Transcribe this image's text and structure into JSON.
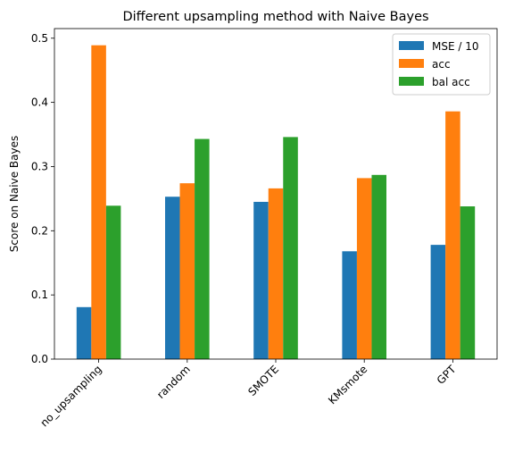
{
  "chart_data": {
    "type": "bar",
    "title": "Different upsampling method with Naive Bayes",
    "xlabel": "",
    "ylabel": "Score on Naive Bayes",
    "categories": [
      "no_upsampling",
      "random",
      "SMOTE",
      "KMsmote",
      "GPT"
    ],
    "series": [
      {
        "name": "MSE / 10",
        "color": "#1f77b4",
        "values": [
          0.081,
          0.253,
          0.245,
          0.168,
          0.178
        ]
      },
      {
        "name": "acc",
        "color": "#ff7f0e",
        "values": [
          0.489,
          0.274,
          0.266,
          0.282,
          0.386
        ]
      },
      {
        "name": "bal acc",
        "color": "#2ca02c",
        "values": [
          0.239,
          0.343,
          0.346,
          0.287,
          0.238
        ]
      }
    ],
    "ylim": [
      0,
      0.515
    ],
    "yticks": [
      0.0,
      0.1,
      0.2,
      0.3,
      0.4,
      0.5
    ],
    "ytick_labels": [
      "0.0",
      "0.1",
      "0.2",
      "0.3",
      "0.4",
      "0.5"
    ],
    "legend_position": "top-right",
    "grid": false
  }
}
